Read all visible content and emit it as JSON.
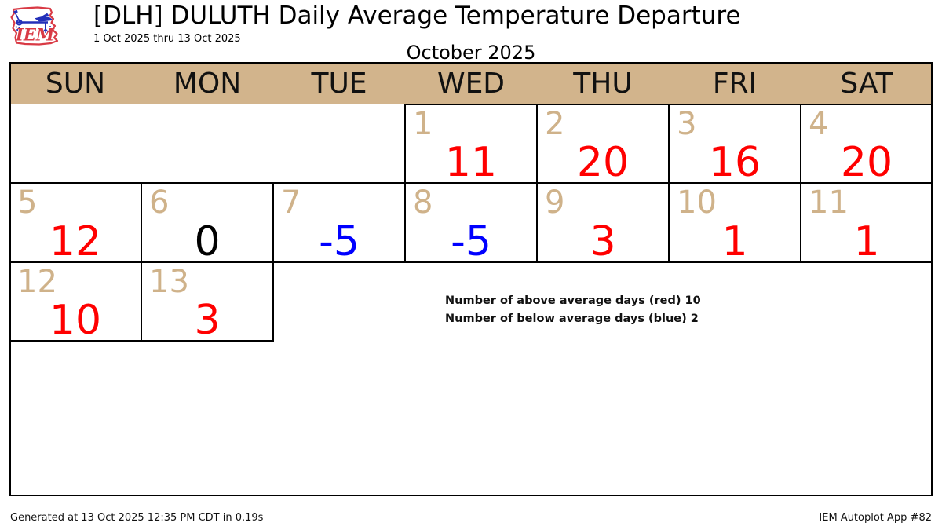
{
  "header": {
    "title": "[DLH] DULUTH Daily Average Temperature Departure",
    "subtitle": "1 Oct 2025 thru 13 Oct 2025",
    "logo_text": "IEM"
  },
  "calendar": {
    "month_title": "October 2025",
    "day_headers": [
      "SUN",
      "MON",
      "TUE",
      "WED",
      "THU",
      "FRI",
      "SAT"
    ],
    "days": [
      {
        "date": 1,
        "value": 11,
        "color": "red"
      },
      {
        "date": 2,
        "value": 20,
        "color": "red"
      },
      {
        "date": 3,
        "value": 16,
        "color": "red"
      },
      {
        "date": 4,
        "value": 20,
        "color": "red"
      },
      {
        "date": 5,
        "value": 12,
        "color": "red"
      },
      {
        "date": 6,
        "value": 0,
        "color": "black"
      },
      {
        "date": 7,
        "value": -5,
        "color": "blue"
      },
      {
        "date": 8,
        "value": -5,
        "color": "blue"
      },
      {
        "date": 9,
        "value": 3,
        "color": "red"
      },
      {
        "date": 10,
        "value": 1,
        "color": "red"
      },
      {
        "date": 11,
        "value": 1,
        "color": "red"
      },
      {
        "date": 12,
        "value": 10,
        "color": "red"
      },
      {
        "date": 13,
        "value": 3,
        "color": "red"
      }
    ]
  },
  "annotations": {
    "above_line": "Number of above average days (red) 10",
    "below_line": "Number of below average days (blue) 2"
  },
  "footer": {
    "left": "Generated at 13 Oct 2025 12:35 PM CDT in 0.19s",
    "right": "IEM Autoplot App #82"
  },
  "colors": {
    "red": "#ff0000",
    "blue": "#0000ff",
    "black": "#000000",
    "header_bg": "#d2b48c",
    "day_number": "#cfb28a",
    "logo_red": "#d93a45",
    "logo_blue": "#2330b9"
  },
  "chart_data": {
    "type": "table",
    "title": "[DLH] DULUTH Daily Average Temperature Departure",
    "subtitle": "1 Oct 2025 thru 13 Oct 2025",
    "month": "October 2025",
    "weekday_headers": [
      "SUN",
      "MON",
      "TUE",
      "WED",
      "THU",
      "FRI",
      "SAT"
    ],
    "series": [
      {
        "name": "Daily Average Temperature Departure",
        "x": [
          1,
          2,
          3,
          4,
          5,
          6,
          7,
          8,
          9,
          10,
          11,
          12,
          13
        ],
        "values": [
          11,
          20,
          16,
          20,
          12,
          0,
          -5,
          -5,
          3,
          1,
          1,
          10,
          3
        ]
      }
    ],
    "above_average_days": 10,
    "below_average_days": 2,
    "color_rule": "positive=red, zero=black, negative=blue"
  }
}
